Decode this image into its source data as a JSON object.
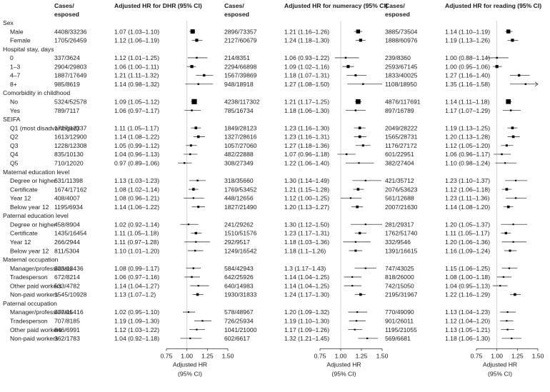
{
  "chart_data": {
    "type": "forest",
    "columns": {
      "cases": "Cases/ esposed",
      "dhr": "Adjusted HR for DHR (95% CI)",
      "numeracy": "Adjusted HR for numeracy (95% CI)",
      "reading": "Adjusted HR for reading (95% CI)"
    },
    "axis": {
      "label": "Adjusted HR",
      "sublabel": "(95% CI)",
      "range": [
        0.75,
        1.5
      ],
      "ticks": [
        "0.75",
        "1.00",
        "1.25",
        "1.50"
      ],
      "reference": 1.0
    },
    "rows": [
      {
        "kind": "section",
        "label": "Sex"
      },
      {
        "kind": "row",
        "label": "Male",
        "dhr": {
          "n": "4408/33236",
          "ci": "1.07 (1.03–1.10)",
          "hr": 1.07,
          "lo": 1.03,
          "hi": 1.1,
          "w": 4
        },
        "num": {
          "n": "2896/73357",
          "ci": "1.21 (1.16–1.26)",
          "hr": 1.21,
          "lo": 1.16,
          "hi": 1.26,
          "w": 3.5
        },
        "read": {
          "n": "3885/73504",
          "ci": "1.14 (1.10–1.19)",
          "hr": 1.14,
          "lo": 1.1,
          "hi": 1.19,
          "w": 3.5
        }
      },
      {
        "kind": "row",
        "label": "Female",
        "dhr": {
          "n": "1705/26459",
          "ci": "1.12 (1.06–1.19)",
          "hr": 1.12,
          "lo": 1.06,
          "hi": 1.19,
          "w": 2.5
        },
        "num": {
          "n": "2127/60679",
          "ci": "1.24 (1.18–1.30)",
          "hr": 1.24,
          "lo": 1.18,
          "hi": 1.3,
          "w": 2.5
        },
        "read": {
          "n": "1888/60976",
          "ci": "1.19 (1.13–1.26)",
          "hr": 1.19,
          "lo": 1.13,
          "hi": 1.26,
          "w": 2.5
        }
      },
      {
        "kind": "section",
        "label": "Hospital stay, days"
      },
      {
        "kind": "row",
        "label": "0",
        "dhr": {
          "n": "337/3624",
          "ci": "1.12 (1.01–1.25)",
          "hr": 1.12,
          "lo": 1.01,
          "hi": 1.25,
          "w": 1
        },
        "num": {
          "n": "214/8351",
          "ci": "1.06 (0.93–1.22)",
          "hr": 1.06,
          "lo": 0.93,
          "hi": 1.22,
          "w": 1
        },
        "read": {
          "n": "239/8360",
          "ci": "1.00 (0.88–1.14)",
          "hr": 1.0,
          "lo": 0.88,
          "hi": 1.14,
          "w": 1
        }
      },
      {
        "kind": "row",
        "label": "1–3",
        "dhr": {
          "n": "2904/29803",
          "ci": "1.06 (1.00–1.11)",
          "hr": 1.06,
          "lo": 1.0,
          "hi": 1.11,
          "w": 2.5
        },
        "num": {
          "n": "2294/66898",
          "ci": "1.09 (1.02–1.16)",
          "hr": 1.09,
          "lo": 1.02,
          "hi": 1.16,
          "w": 2.5
        },
        "read": {
          "n": "2593/67145",
          "ci": "1.00 (0.95–1.06)",
          "hr": 1.0,
          "lo": 0.95,
          "hi": 1.06,
          "w": 2.5
        }
      },
      {
        "kind": "row",
        "label": "4–7",
        "dhr": {
          "n": "1887/17649",
          "ci": "1.21 (1.11–1.32)",
          "hr": 1.21,
          "lo": 1.11,
          "hi": 1.32,
          "w": 1.8
        },
        "num": {
          "n": "1567/39869",
          "ci": "1.18 (1.07–1.31)",
          "hr": 1.18,
          "lo": 1.07,
          "hi": 1.31,
          "w": 1.5
        },
        "read": {
          "n": "1833/40025",
          "ci": "1.27 (1.16–1.40)",
          "hr": 1.27,
          "lo": 1.16,
          "hi": 1.4,
          "w": 1.8
        }
      },
      {
        "kind": "row",
        "label": "8+",
        "dhr": {
          "n": "985/8619",
          "ci": "1.14 (0.98–1.32)",
          "hr": 1.14,
          "lo": 0.98,
          "hi": 1.32,
          "w": 1
        },
        "num": {
          "n": "948/18918",
          "ci": "1.27 (1.08–1.50)",
          "hr": 1.27,
          "lo": 1.08,
          "hi": 1.5,
          "w": 1
        },
        "read": {
          "n": "1108/18950",
          "ci": "1.35 (1.16–1.58)",
          "hr": 1.35,
          "lo": 1.16,
          "hi": 1.58,
          "w": 1
        }
      },
      {
        "kind": "section",
        "label": "Comorbidity in childhood"
      },
      {
        "kind": "row",
        "label": "No",
        "dhr": {
          "n": "5324/52578",
          "ci": "1.09 (1.05–1.12)",
          "hr": 1.09,
          "lo": 1.05,
          "hi": 1.12,
          "w": 5
        },
        "num": {
          "n": "4238/117302",
          "ci": "1.21 (1.17–1.25)",
          "hr": 1.21,
          "lo": 1.17,
          "hi": 1.25,
          "w": 4.5
        },
        "read": {
          "n": "4876/117691",
          "ci": "1.14 (1.11–1.18)",
          "hr": 1.14,
          "lo": 1.11,
          "hi": 1.18,
          "w": 4.5
        }
      },
      {
        "kind": "row",
        "label": "Yes",
        "dhr": {
          "n": "789/7117",
          "ci": "1.06 (0.97–1.17)",
          "hr": 1.06,
          "lo": 0.97,
          "hi": 1.17,
          "w": 1
        },
        "num": {
          "n": "785/16734",
          "ci": "1.18 (1.06–1.30)",
          "hr": 1.18,
          "lo": 1.06,
          "hi": 1.3,
          "w": 1
        },
        "read": {
          "n": "897/16789",
          "ci": "1.17 (1.07–1.29)",
          "hr": 1.17,
          "lo": 1.07,
          "hi": 1.29,
          "w": 1
        }
      },
      {
        "kind": "section",
        "label": "SEIFA"
      },
      {
        "kind": "row",
        "label": "Q1 (most disadvantaged)",
        "dhr": {
          "n": "1727/12337",
          "ci": "1.11 (1.05–1.17)",
          "hr": 1.11,
          "lo": 1.05,
          "hi": 1.17,
          "w": 2
        },
        "num": {
          "n": "1849/28123",
          "ci": "1.23 (1.16–1.30)",
          "hr": 1.23,
          "lo": 1.16,
          "hi": 1.3,
          "w": 2
        },
        "read": {
          "n": "2049/28222",
          "ci": "1.19 (1.13–1.25)",
          "hr": 1.19,
          "lo": 1.13,
          "hi": 1.25,
          "w": 2
        }
      },
      {
        "kind": "row",
        "label": "Q2",
        "dhr": {
          "n": "1613/12900",
          "ci": "1.14 (1.08–1.22)",
          "hr": 1.14,
          "lo": 1.08,
          "hi": 1.22,
          "w": 2
        },
        "num": {
          "n": "1327/28616",
          "ci": "1.23 (1.16–1.31)",
          "hr": 1.23,
          "lo": 1.16,
          "hi": 1.31,
          "w": 2
        },
        "read": {
          "n": "1565/28731",
          "ci": "1.20 (1.13–1.28)",
          "hr": 1.2,
          "lo": 1.13,
          "hi": 1.28,
          "w": 2
        }
      },
      {
        "kind": "row",
        "label": "Q3",
        "dhr": {
          "n": "1228/12308",
          "ci": "1.05 (0.99–1.12)",
          "hr": 1.05,
          "lo": 0.99,
          "hi": 1.12,
          "w": 1.5
        },
        "num": {
          "n": "1057/27060",
          "ci": "1.27 (1.18–1.36)",
          "hr": 1.27,
          "lo": 1.18,
          "hi": 1.36,
          "w": 1.5
        },
        "read": {
          "n": "1176/27172",
          "ci": "1.12 (1.05–1.20)",
          "hr": 1.12,
          "lo": 1.05,
          "hi": 1.2,
          "w": 1.5
        }
      },
      {
        "kind": "row",
        "label": "Q4",
        "dhr": {
          "n": "835/10130",
          "ci": "1.04 (0.96–1.13)",
          "hr": 1.04,
          "lo": 0.96,
          "hi": 1.13,
          "w": 1
        },
        "num": {
          "n": "482/22888",
          "ci": "1.07 (0.96–1.18)",
          "hr": 1.07,
          "lo": 0.96,
          "hi": 1.18,
          "w": 1
        },
        "read": {
          "n": "601/22951",
          "ci": "1.06 (0.96–1.17)",
          "hr": 1.06,
          "lo": 0.96,
          "hi": 1.17,
          "w": 1
        }
      },
      {
        "kind": "row",
        "label": "Q5",
        "dhr": {
          "n": "710/12020",
          "ci": "0.97 (0.89–1.06)",
          "hr": 0.97,
          "lo": 0.89,
          "hi": 1.06,
          "w": 1
        },
        "num": {
          "n": "308/27349",
          "ci": "1.22 (1.06–1.40)",
          "hr": 1.22,
          "lo": 1.06,
          "hi": 1.4,
          "w": 0.8
        },
        "read": {
          "n": "382/27404",
          "ci": "1.10 (0.98–1.24)",
          "hr": 1.1,
          "lo": 0.98,
          "hi": 1.24,
          "w": 0.8
        }
      },
      {
        "kind": "section",
        "label": "Maternal education level"
      },
      {
        "kind": "row",
        "label": "Degree or higher",
        "dhr": {
          "n": "631/11398",
          "ci": "1.13 (1.03–1.23)",
          "hr": 1.13,
          "lo": 1.03,
          "hi": 1.23,
          "w": 1
        },
        "num": {
          "n": "318/35660",
          "ci": "1.30 (1.14–1.49)",
          "hr": 1.3,
          "lo": 1.14,
          "hi": 1.49,
          "w": 0.8
        },
        "read": {
          "n": "421/35712",
          "ci": "1.23 (1.10–1.37)",
          "hr": 1.23,
          "lo": 1.1,
          "hi": 1.37,
          "w": 0.8
        }
      },
      {
        "kind": "row",
        "label": "Certificate",
        "dhr": {
          "n": "1674/17162",
          "ci": "1.08 (1.02–1.14)",
          "hr": 1.08,
          "lo": 1.02,
          "hi": 1.14,
          "w": 2
        },
        "num": {
          "n": "1769/53452",
          "ci": "1.21 (1.15–1.28)",
          "hr": 1.21,
          "lo": 1.15,
          "hi": 1.28,
          "w": 2
        },
        "read": {
          "n": "2076/53623",
          "ci": "1.12 (1.06–1.18)",
          "hr": 1.12,
          "lo": 1.06,
          "hi": 1.18,
          "w": 2
        }
      },
      {
        "kind": "row",
        "label": "Year 12",
        "dhr": {
          "n": "408/4007",
          "ci": "1.08 (0.96–1.21)",
          "hr": 1.08,
          "lo": 0.96,
          "hi": 1.21,
          "w": 0.8
        },
        "num": {
          "n": "448/12656",
          "ci": "1.12 (1.00–1.25)",
          "hr": 1.12,
          "lo": 1.0,
          "hi": 1.25,
          "w": 0.8
        },
        "read": {
          "n": "561/12688",
          "ci": "1.23 (1.11–1.36)",
          "hr": 1.23,
          "lo": 1.11,
          "hi": 1.36,
          "w": 0.8
        }
      },
      {
        "kind": "row",
        "label": "Below year 12",
        "dhr": {
          "n": "1195/6934",
          "ci": "1.14 (1.06–1.22)",
          "hr": 1.14,
          "lo": 1.06,
          "hi": 1.22,
          "w": 1.5
        },
        "num": {
          "n": "1827/21490",
          "ci": "1.20 (1.13–1.27)",
          "hr": 1.2,
          "lo": 1.13,
          "hi": 1.27,
          "w": 2
        },
        "read": {
          "n": "2007/21630",
          "ci": "1.14 (1.08–1.20)",
          "hr": 1.14,
          "lo": 1.08,
          "hi": 1.2,
          "w": 2
        }
      },
      {
        "kind": "section",
        "label": "Paternal education level"
      },
      {
        "kind": "row",
        "label": "Degree or higher",
        "dhr": {
          "n": "458/8904",
          "ci": "1.02 (0.92–1.14)",
          "hr": 1.02,
          "lo": 0.92,
          "hi": 1.14,
          "w": 0.8
        },
        "num": {
          "n": "241/29262",
          "ci": "1.30 (1.12–1.50)",
          "hr": 1.3,
          "lo": 1.12,
          "hi": 1.5,
          "w": 0.8
        },
        "read": {
          "n": "281/29317",
          "ci": "1.20 (1.05–1.37)",
          "hr": 1.2,
          "lo": 1.05,
          "hi": 1.37,
          "w": 0.8
        }
      },
      {
        "kind": "row",
        "label": "Certificate",
        "dhr": {
          "n": "1435/16454",
          "ci": "1.11 (1.05–1.18)",
          "hr": 1.11,
          "lo": 1.05,
          "hi": 1.18,
          "w": 1.8
        },
        "num": {
          "n": "1510/51576",
          "ci": "1.23 (1.17–1.31)",
          "hr": 1.23,
          "lo": 1.17,
          "hi": 1.31,
          "w": 1.8
        },
        "read": {
          "n": "1762/51740",
          "ci": "1.11 (1.05–1.17)",
          "hr": 1.11,
          "lo": 1.05,
          "hi": 1.17,
          "w": 1.8
        }
      },
      {
        "kind": "row",
        "label": "Year 12",
        "dhr": {
          "n": "266/2944",
          "ci": "1.11 (0.97–1.28)",
          "hr": 1.11,
          "lo": 0.97,
          "hi": 1.28,
          "w": 0.8
        },
        "num": {
          "n": "292/9517",
          "ci": "1.18 (1.03–1.36)",
          "hr": 1.18,
          "lo": 1.03,
          "hi": 1.36,
          "w": 0.8
        },
        "read": {
          "n": "332/9546",
          "ci": "1.20 (1.06–1.36)",
          "hr": 1.2,
          "lo": 1.06,
          "hi": 1.36,
          "w": 0.8
        }
      },
      {
        "kind": "row",
        "label": "Below year 12",
        "dhr": {
          "n": "811/5304",
          "ci": "1.10 (1.01–1.20)",
          "hr": 1.1,
          "lo": 1.01,
          "hi": 1.2,
          "w": 1
        },
        "num": {
          "n": "1249/16542",
          "ci": "1.18 (1.1–1.26)",
          "hr": 1.18,
          "lo": 1.1,
          "hi": 1.26,
          "w": 1.5
        },
        "read": {
          "n": "1391/16615",
          "ci": "1.16 (1.09–1.24)",
          "hr": 1.16,
          "lo": 1.09,
          "hi": 1.24,
          "w": 1.5
        }
      },
      {
        "kind": "section",
        "label": "Maternal occupation"
      },
      {
        "kind": "row",
        "label": "Manager/professionals",
        "dhr": {
          "n": "823/13436",
          "ci": "1.08 (0.99–1.17)",
          "hr": 1.08,
          "lo": 0.99,
          "hi": 1.17,
          "w": 1
        },
        "num": {
          "n": "584/42943",
          "ci": "1.3 (1.17–1.43)",
          "hr": 1.3,
          "lo": 1.17,
          "hi": 1.43,
          "w": 0.8
        },
        "read": {
          "n": "747/43025",
          "ci": "1.15 (1.06–1.25)",
          "hr": 1.15,
          "lo": 1.06,
          "hi": 1.25,
          "w": 0.8
        }
      },
      {
        "kind": "row",
        "label": "Tradesperson",
        "dhr": {
          "n": "672/8214",
          "ci": "1.06 (0.97–1.16)",
          "hr": 1.06,
          "lo": 0.97,
          "hi": 1.16,
          "w": 1
        },
        "num": {
          "n": "642/25926",
          "ci": "1.14 (1.04–1.25)",
          "hr": 1.14,
          "lo": 1.04,
          "hi": 1.25,
          "w": 0.8
        },
        "read": {
          "n": "818/26000",
          "ci": "1.08 (1.00–1.18)",
          "hr": 1.08,
          "lo": 1.0,
          "hi": 1.18,
          "w": 0.8
        }
      },
      {
        "kind": "row",
        "label": "Other paid workers",
        "dhr": {
          "n": "533/4782",
          "ci": "1.14 (1.04–1.27)",
          "hr": 1.14,
          "lo": 1.04,
          "hi": 1.27,
          "w": 0.8
        },
        "num": {
          "n": "640/14983",
          "ci": "1.14 (1.04–1.25)",
          "hr": 1.14,
          "lo": 1.04,
          "hi": 1.25,
          "w": 0.8
        },
        "read": {
          "n": "742/15050",
          "ci": "1.04 (0.95–1.13)",
          "hr": 1.04,
          "lo": 0.95,
          "hi": 1.13,
          "w": 0.8
        }
      },
      {
        "kind": "row",
        "label": "Non-paid workers",
        "dhr": {
          "n": "1545/10928",
          "ci": "1.13 (1.07–1.2)",
          "hr": 1.13,
          "lo": 1.07,
          "hi": 1.2,
          "w": 2
        },
        "num": {
          "n": "1930/31833",
          "ci": "1.24 (1.17–1.30)",
          "hr": 1.24,
          "lo": 1.17,
          "hi": 1.3,
          "w": 2
        },
        "read": {
          "n": "2195/31967",
          "ci": "1.22 (1.16–1.29)",
          "hr": 1.22,
          "lo": 1.16,
          "hi": 1.29,
          "w": 2
        }
      },
      {
        "kind": "section",
        "label": "Paternal occupation"
      },
      {
        "kind": "row",
        "label": "Manager/professionals",
        "dhr": {
          "n": "877/15416",
          "ci": "1.02 (0.95–1.10)",
          "hr": 1.02,
          "lo": 0.95,
          "hi": 1.1,
          "w": 0.8
        },
        "num": {
          "n": "578/48967",
          "ci": "1.20 (1.09–1.32)",
          "hr": 1.2,
          "lo": 1.09,
          "hi": 1.32,
          "w": 0.8
        },
        "read": {
          "n": "770/49090",
          "ci": "1.13 (1.04–1.23)",
          "hr": 1.13,
          "lo": 1.04,
          "hi": 1.23,
          "w": 0.8
        }
      },
      {
        "kind": "row",
        "label": "Tradesperson",
        "dhr": {
          "n": "707/8185",
          "ci": "1.19 (1.09–1.30)",
          "hr": 1.19,
          "lo": 1.09,
          "hi": 1.3,
          "w": 0.8
        },
        "num": {
          "n": "726/25934",
          "ci": "1.19 (1.10–1.30)",
          "hr": 1.19,
          "lo": 1.1,
          "hi": 1.3,
          "w": 0.8
        },
        "read": {
          "n": "901/26011",
          "ci": "1.12 (1.04–1.20)",
          "hr": 1.12,
          "lo": 1.04,
          "hi": 1.2,
          "w": 0.8
        }
      },
      {
        "kind": "row",
        "label": "Other paid workers",
        "dhr": {
          "n": "846/6991",
          "ci": "1.12 (1.03–1.22)",
          "hr": 1.12,
          "lo": 1.03,
          "hi": 1.22,
          "w": 0.8
        },
        "num": {
          "n": "1041/21000",
          "ci": "1.17 (1.09–1.26)",
          "hr": 1.17,
          "lo": 1.09,
          "hi": 1.26,
          "w": 0.8
        },
        "read": {
          "n": "1195/21055",
          "ci": "1.13 (1.05–1.21)",
          "hr": 1.13,
          "lo": 1.05,
          "hi": 1.21,
          "w": 0.8
        }
      },
      {
        "kind": "row",
        "label": "Non-paid workers",
        "dhr": {
          "n": "362/1783",
          "ci": "1.04 (0.92–1.18)",
          "hr": 1.04,
          "lo": 0.92,
          "hi": 1.18,
          "w": 0.8
        },
        "num": {
          "n": "602/6617",
          "ci": "1.32 (1.21–1.45)",
          "hr": 1.32,
          "lo": 1.21,
          "hi": 1.45,
          "w": 0.8
        },
        "read": {
          "n": "569/6681",
          "ci": "1.18 (1.06–1.30)",
          "hr": 1.18,
          "lo": 1.06,
          "hi": 1.3,
          "w": 0.8
        }
      }
    ]
  }
}
